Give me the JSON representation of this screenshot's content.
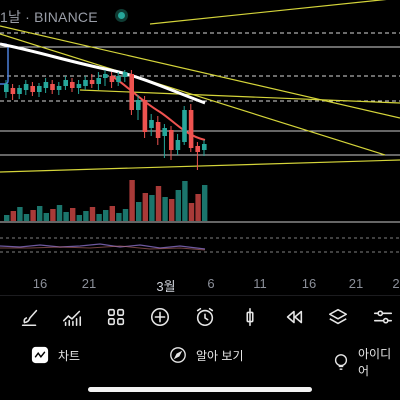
{
  "header": {
    "label": "1날 · BINANCE"
  },
  "x_axis": {
    "ticks": [
      "16",
      "21",
      "3월",
      "6",
      "11",
      "16",
      "21",
      "2"
    ]
  },
  "toolbar": {
    "tools": [
      "draw-brush-icon",
      "indicators-icon",
      "layout-grid-icon",
      "add-plus-icon",
      "alarm-clock-icon",
      "candle-type-icon",
      "replay-rewind-icon",
      "layers-icon",
      "settings-sliders-icon"
    ]
  },
  "nav": {
    "chart_label": "차트",
    "explore_label": "알아 보기",
    "ideas_label": "아이디어"
  },
  "colors": {
    "up": "#26a69a",
    "down": "#ef5350",
    "trend": "#d4d43a",
    "ma": "#ffffff",
    "grid_dashed": "#ffffff"
  }
}
